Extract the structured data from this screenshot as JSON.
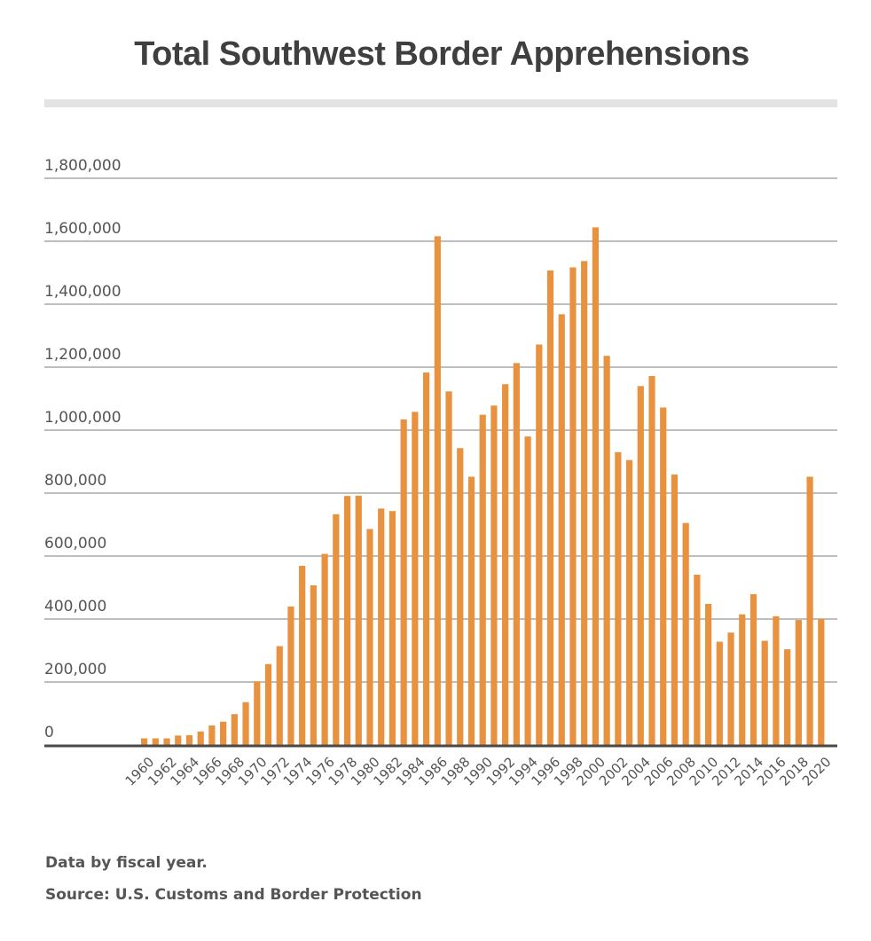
{
  "chart_data": {
    "type": "bar",
    "title": "Total Southwest Border Apprehensions",
    "xlabel": "",
    "ylabel": "",
    "ylim": [
      0,
      1800000
    ],
    "grid": true,
    "legend": "none",
    "bar_color": "#E8913F",
    "y_ticks": [
      {
        "value": 0,
        "label": "0"
      },
      {
        "value": 200000,
        "label": "200,000"
      },
      {
        "value": 400000,
        "label": "400,000"
      },
      {
        "value": 600000,
        "label": "600,000"
      },
      {
        "value": 800000,
        "label": "800,000"
      },
      {
        "value": 1000000,
        "label": "1,000,000"
      },
      {
        "value": 1200000,
        "label": "1,200,000"
      },
      {
        "value": 1400000,
        "label": "1,400,000"
      },
      {
        "value": 1600000,
        "label": "1,600,000"
      },
      {
        "value": 1800000,
        "label": "1,800,000"
      }
    ],
    "x_tick_labels": [
      "1960",
      "1962",
      "1964",
      "1966",
      "1968",
      "1970",
      "1972",
      "1974",
      "1976",
      "1978",
      "1980",
      "1982",
      "1984",
      "1986",
      "1988",
      "1990",
      "1992",
      "1994",
      "1996",
      "1998",
      "2000",
      "2002",
      "2004",
      "2006",
      "2008",
      "2010",
      "2012",
      "2014",
      "2016",
      "2018",
      "2020"
    ],
    "categories": [
      "1960",
      "1961",
      "1962",
      "1963",
      "1964",
      "1965",
      "1966",
      "1967",
      "1968",
      "1969",
      "1970",
      "1971",
      "1972",
      "1973",
      "1974",
      "1975",
      "1976",
      "1977",
      "1978",
      "1979",
      "1980",
      "1981",
      "1982",
      "1983",
      "1984",
      "1985",
      "1986",
      "1987",
      "1988",
      "1989",
      "1990",
      "1991",
      "1992",
      "1993",
      "1994",
      "1995",
      "1996",
      "1997",
      "1998",
      "1999",
      "2000",
      "2001",
      "2002",
      "2003",
      "2004",
      "2005",
      "2006",
      "2007",
      "2008",
      "2009",
      "2010",
      "2011",
      "2012",
      "2013",
      "2014",
      "2015",
      "2016",
      "2017",
      "2018",
      "2019",
      "2020"
    ],
    "values": [
      21000,
      21000,
      21000,
      30000,
      31000,
      43000,
      62000,
      74000,
      98000,
      136000,
      202000,
      257000,
      314000,
      440000,
      569000,
      507000,
      607000,
      733000,
      791000,
      792000,
      686000,
      751000,
      743000,
      1034000,
      1058000,
      1183000,
      1616000,
      1123000,
      943000,
      852000,
      1049000,
      1078000,
      1146000,
      1213000,
      980000,
      1272000,
      1507000,
      1368000,
      1517000,
      1537000,
      1644000,
      1236000,
      930000,
      905000,
      1140000,
      1172000,
      1072000,
      859000,
      705000,
      541000,
      448000,
      328000,
      357000,
      415000,
      479000,
      331000,
      409000,
      304000,
      397000,
      852000,
      401000
    ]
  },
  "footer": {
    "note": "Data by fiscal year.",
    "source": "Source: U.S. Customs and Border Protection"
  }
}
